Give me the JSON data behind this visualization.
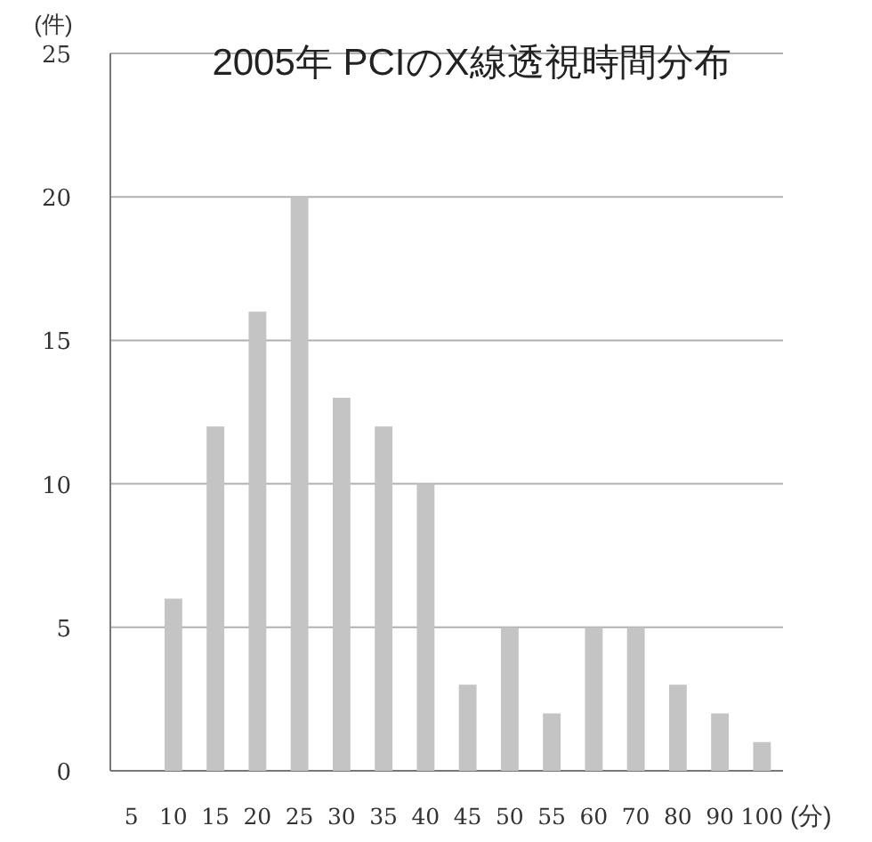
{
  "chart_data": {
    "type": "bar",
    "title": "2005年  PCIのX線透視時間分布",
    "xlabel": "(分)",
    "ylabel": "(件)",
    "categories": [
      "5",
      "10",
      "15",
      "20",
      "25",
      "30",
      "35",
      "40",
      "45",
      "50",
      "55",
      "60",
      "70",
      "80",
      "90",
      "100"
    ],
    "values": [
      0,
      6,
      12,
      16,
      20,
      13,
      12,
      10,
      3,
      5,
      2,
      5,
      5,
      3,
      2,
      1
    ],
    "color": "#c4c4c4",
    "ylim": [
      0,
      25
    ],
    "yticks": [
      0,
      5,
      10,
      15,
      20,
      25
    ],
    "grid": "y"
  }
}
